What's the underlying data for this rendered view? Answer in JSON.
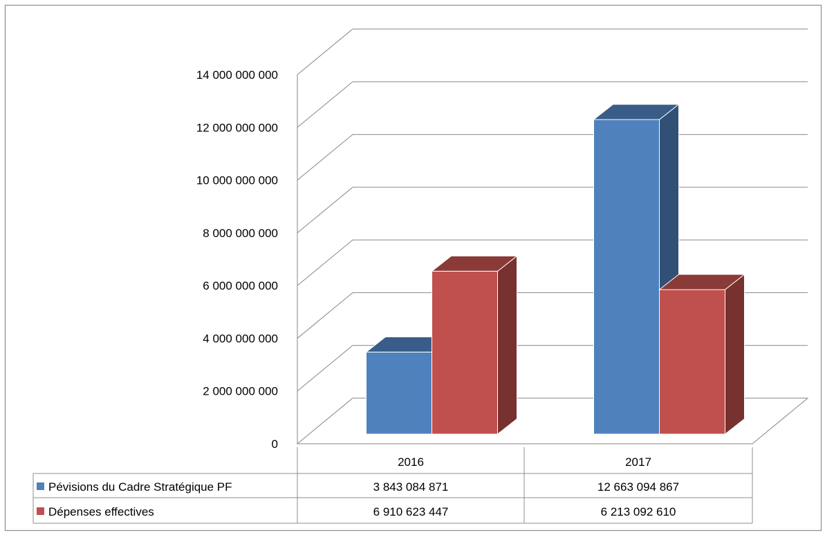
{
  "colors": {
    "series_pevisions": "#4F81BD",
    "series_depenses": "#C0504D",
    "gridline": "#868686",
    "text": "#000000"
  },
  "chart_data": {
    "type": "bar",
    "variant": "3d-clustered-column-with-data-table",
    "categories": [
      "2016",
      "2017"
    ],
    "series": [
      {
        "name": "Pévisions du Cadre Stratégique PF",
        "values": [
          3843084871,
          12663094867
        ],
        "display_values": [
          "3 843 084 871",
          "12 663 094 867"
        ],
        "color": "#4F81BD"
      },
      {
        "name": "Dépenses effectives",
        "values": [
          6910623447,
          6213092610
        ],
        "display_values": [
          "6 910 623 447",
          "6 213 092 610"
        ],
        "color": "#C0504D"
      }
    ],
    "ylim": [
      0,
      14000000000
    ],
    "y_ticks": [
      0,
      2000000000,
      4000000000,
      6000000000,
      8000000000,
      10000000000,
      12000000000,
      14000000000
    ],
    "y_tick_labels": [
      "0",
      "2 000 000 000",
      "4 000 000 000",
      "6 000 000 000",
      "8 000 000 000",
      "10 000 000 000",
      "12 000 000 000",
      "14 000 000 000"
    ],
    "grid": true,
    "legend": "data-table"
  }
}
